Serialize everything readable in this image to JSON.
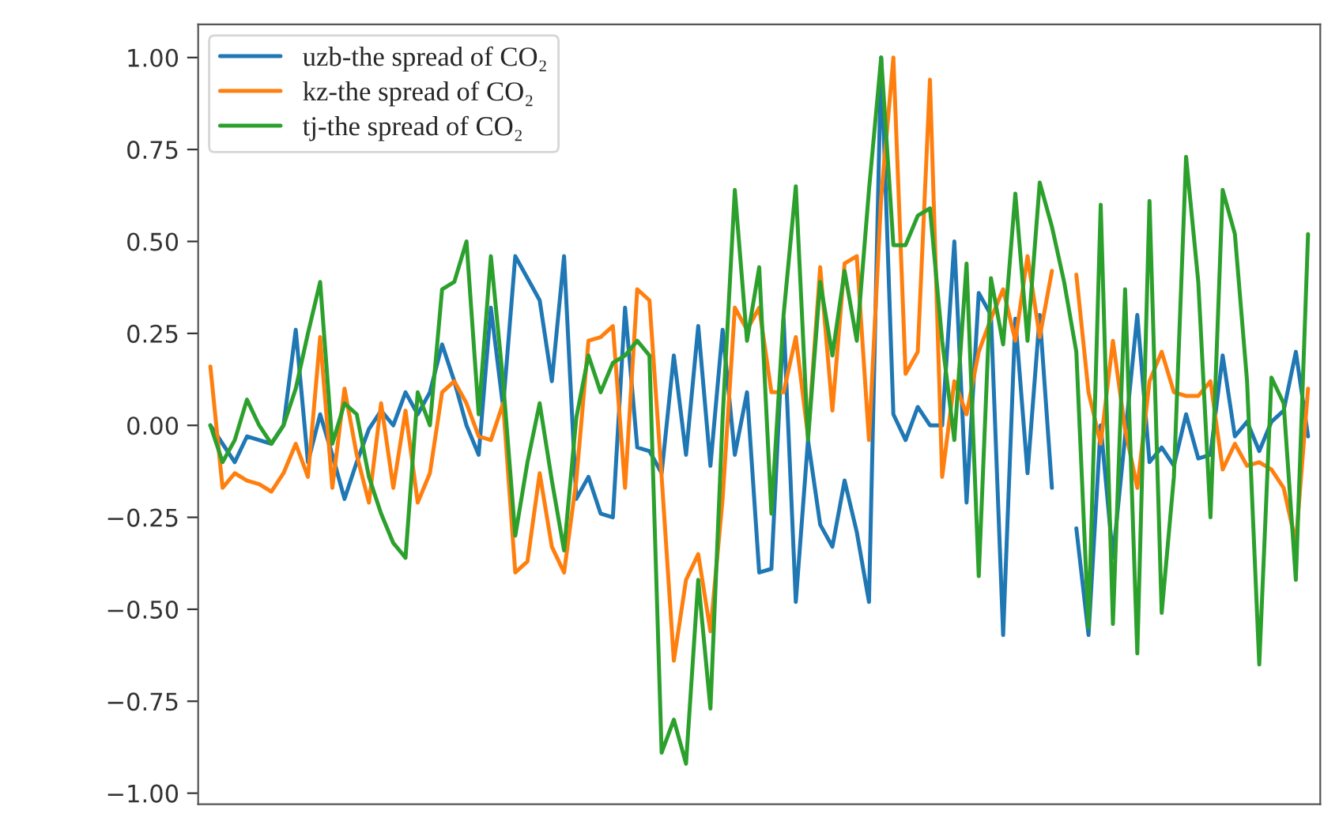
{
  "chart_data": {
    "type": "line",
    "categories": [
      null,
      null,
      null,
      null,
      null,
      null,
      null,
      null,
      null,
      null,
      null,
      null,
      null,
      null,
      null,
      null,
      null,
      null,
      null,
      null,
      null,
      null,
      null,
      null,
      null,
      null,
      null,
      null,
      null,
      null,
      null,
      null,
      null,
      null,
      null,
      null,
      null,
      null,
      null,
      null,
      null,
      null,
      null,
      null,
      null,
      null,
      null,
      null,
      null,
      null,
      null,
      null,
      null,
      null,
      null,
      null,
      null,
      null,
      null,
      null,
      null,
      null,
      null,
      null,
      null,
      null,
      null,
      null,
      null,
      null,
      null,
      null,
      null,
      null,
      null,
      null,
      null,
      null,
      null,
      null,
      null,
      null,
      null,
      null,
      null,
      null,
      null,
      null,
      null,
      null,
      null
    ],
    "series": [
      {
        "name": "uzb-the spread of CO₂",
        "color": "#1f77b4",
        "values": [
          0.0,
          -0.05,
          -0.1,
          -0.03,
          -0.04,
          -0.05,
          0.0,
          0.26,
          -0.1,
          0.03,
          -0.08,
          -0.2,
          -0.1,
          -0.01,
          0.04,
          0.0,
          0.09,
          0.03,
          0.09,
          0.22,
          0.12,
          0.0,
          -0.08,
          0.32,
          0.05,
          0.46,
          0.4,
          0.34,
          0.12,
          0.46,
          -0.2,
          -0.14,
          -0.24,
          -0.25,
          0.32,
          -0.06,
          -0.07,
          -0.13,
          0.19,
          -0.08,
          0.27,
          -0.11,
          0.26,
          -0.08,
          0.09,
          -0.4,
          -0.39,
          0.29,
          -0.48,
          -0.04,
          -0.27,
          -0.33,
          -0.15,
          -0.29,
          -0.48,
          1.0,
          0.03,
          -0.04,
          0.05,
          0.0,
          0.0,
          0.5,
          -0.21,
          0.36,
          0.3,
          -0.57,
          0.29,
          -0.13,
          0.3,
          -0.17,
          null,
          -0.28,
          -0.57,
          0.0,
          -0.36,
          -0.03,
          0.3,
          -0.1,
          -0.06,
          -0.11,
          0.03,
          -0.09,
          -0.08,
          0.19,
          -0.03,
          0.01,
          -0.07,
          0.01,
          0.04,
          0.2,
          -0.03
        ]
      },
      {
        "name": "kz-the spread of CO₂",
        "color": "#ff7f0e",
        "values": [
          0.16,
          -0.17,
          -0.13,
          -0.15,
          -0.16,
          -0.18,
          -0.13,
          -0.05,
          -0.14,
          0.24,
          -0.17,
          0.1,
          -0.08,
          -0.21,
          0.06,
          -0.17,
          0.04,
          -0.21,
          -0.13,
          0.09,
          0.12,
          0.06,
          -0.03,
          -0.04,
          0.06,
          -0.4,
          -0.37,
          -0.13,
          -0.33,
          -0.4,
          -0.15,
          0.23,
          0.24,
          0.27,
          -0.17,
          0.37,
          0.34,
          -0.14,
          -0.64,
          -0.42,
          -0.35,
          -0.56,
          -0.2,
          0.32,
          0.26,
          0.32,
          0.09,
          0.09,
          0.24,
          -0.03,
          0.43,
          0.04,
          0.44,
          0.46,
          -0.04,
          0.62,
          1.0,
          0.14,
          0.2,
          0.94,
          -0.14,
          0.12,
          0.03,
          0.2,
          0.29,
          0.37,
          0.23,
          0.46,
          0.24,
          0.42,
          null,
          0.41,
          0.09,
          -0.05,
          0.23,
          -0.01,
          -0.17,
          0.12,
          0.2,
          0.09,
          0.08,
          0.08,
          0.12,
          -0.12,
          -0.05,
          -0.11,
          -0.1,
          -0.12,
          -0.17,
          -0.32,
          0.1
        ]
      },
      {
        "name": "tj-the spread of CO₂",
        "color": "#2ca02c",
        "values": [
          0.0,
          -0.1,
          -0.04,
          0.07,
          0.0,
          -0.05,
          0.0,
          0.1,
          0.25,
          0.39,
          -0.05,
          0.06,
          0.03,
          -0.14,
          -0.24,
          -0.32,
          -0.36,
          0.09,
          0.0,
          0.37,
          0.39,
          0.5,
          0.03,
          0.46,
          0.12,
          -0.3,
          -0.1,
          0.06,
          -0.15,
          -0.34,
          0.02,
          0.19,
          0.09,
          0.17,
          0.19,
          0.23,
          0.19,
          -0.89,
          -0.8,
          -0.92,
          -0.42,
          -0.77,
          0.02,
          0.64,
          0.23,
          0.43,
          -0.24,
          0.3,
          0.65,
          -0.04,
          0.39,
          0.19,
          0.42,
          0.23,
          0.64,
          1.0,
          0.49,
          0.49,
          0.57,
          0.59,
          0.23,
          -0.04,
          0.44,
          -0.41,
          0.4,
          0.22,
          0.63,
          0.23,
          0.66,
          0.54,
          0.39,
          0.2,
          -0.55,
          0.6,
          -0.54,
          0.37,
          -0.62,
          0.61,
          -0.51,
          -0.14,
          0.73,
          0.39,
          -0.25,
          0.64,
          0.52,
          0.12,
          -0.65,
          0.13,
          0.06,
          -0.42,
          0.52
        ]
      }
    ],
    "ylim": [
      -1.03,
      1.09
    ],
    "yticks": [
      {
        "value": -1,
        "label": "−1.00"
      },
      {
        "value": -0.75,
        "label": "−0.75"
      },
      {
        "value": -0.5,
        "label": "−0.50"
      },
      {
        "value": -0.25,
        "label": "−0.25"
      },
      {
        "value": 0,
        "label": "0.00"
      },
      {
        "value": 0.25,
        "label": "0.25"
      },
      {
        "value": 0.5,
        "label": "0.50"
      },
      {
        "value": 0.75,
        "label": "0.75"
      },
      {
        "value": 1,
        "label": "1.00"
      }
    ],
    "tick_labels": "y",
    "legend": "top left",
    "marker": "none",
    "line_style": "solid"
  }
}
